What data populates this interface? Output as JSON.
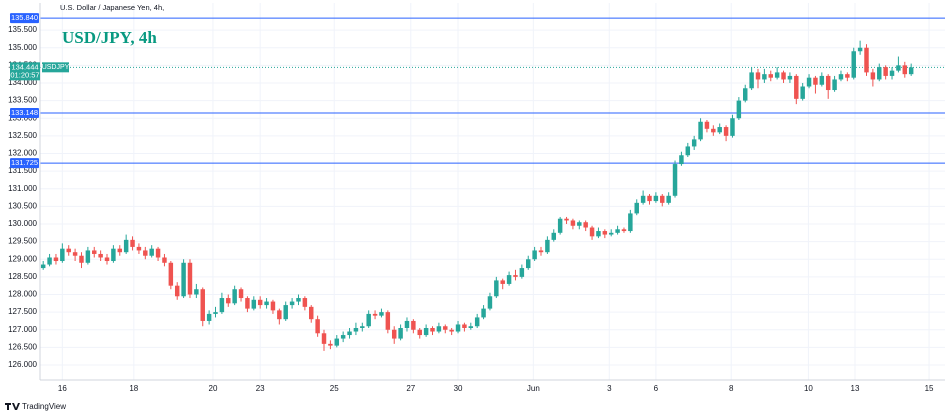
{
  "chart_data": {
    "type": "candlestick",
    "instrument": "U.S. Dollar / Japanese Yen, 4h,",
    "title": "USD/JPY, 4h",
    "source": "TradingView",
    "symbol": "USDJPY",
    "up_color": "#26a69a",
    "down_color": "#ef5350",
    "level_color": "#2962ff",
    "grid": true,
    "ylim": [
      125.575,
      136.07
    ],
    "yticks": [
      {
        "value": 126,
        "label": "126.000"
      },
      {
        "value": 126.5,
        "label": "126.500"
      },
      {
        "value": 127,
        "label": "127.000"
      },
      {
        "value": 127.5,
        "label": "127.500"
      },
      {
        "value": 128,
        "label": "128.000"
      },
      {
        "value": 128.5,
        "label": "128.500"
      },
      {
        "value": 129,
        "label": "129.000"
      },
      {
        "value": 129.5,
        "label": "129.500"
      },
      {
        "value": 130,
        "label": "130.000"
      },
      {
        "value": 130.5,
        "label": "130.500"
      },
      {
        "value": 131,
        "label": "131.000"
      },
      {
        "value": 131.5,
        "label": "131.500"
      },
      {
        "value": 132,
        "label": "132.000"
      },
      {
        "value": 132.5,
        "label": "132.500"
      },
      {
        "value": 133,
        "label": "133.000"
      },
      {
        "value": 133.5,
        "label": "133.500"
      },
      {
        "value": 134,
        "label": "134.000"
      },
      {
        "value": 134.5,
        "label": "134.500"
      },
      {
        "value": 135,
        "label": "135.000"
      },
      {
        "value": 135.5,
        "label": "135.500"
      }
    ],
    "xlim": [
      -0.5,
      141.3
    ],
    "xticks": [
      {
        "value": 3,
        "label": "16"
      },
      {
        "value": 14.2,
        "label": "18"
      },
      {
        "value": 26.6,
        "label": "20"
      },
      {
        "value": 34,
        "label": "23"
      },
      {
        "value": 45.6,
        "label": "25"
      },
      {
        "value": 57.6,
        "label": "27"
      },
      {
        "value": 65,
        "label": "30"
      },
      {
        "value": 76.8,
        "label": "Jun"
      },
      {
        "value": 88.7,
        "label": "3"
      },
      {
        "value": 96,
        "label": "6"
      },
      {
        "value": 107.8,
        "label": "8"
      },
      {
        "value": 119.9,
        "label": "10"
      },
      {
        "value": 127.2,
        "label": "13"
      },
      {
        "value": 138.8,
        "label": "15"
      }
    ],
    "levels": [
      {
        "value": 135.84,
        "label": "135.840"
      },
      {
        "value": 133.148,
        "label": "133.148"
      },
      {
        "value": 131.725,
        "label": "131.725"
      }
    ],
    "last_price": 134.444,
    "countdown": "01:20:57",
    "candles": [
      [
        128.75,
        128.95,
        128.7,
        128.85
      ],
      [
        128.85,
        129.15,
        128.8,
        129.05
      ],
      [
        129.05,
        129.15,
        128.85,
        128.95
      ],
      [
        128.95,
        129.45,
        128.9,
        129.3
      ],
      [
        129.3,
        129.4,
        129.1,
        129.2
      ],
      [
        129.2,
        129.3,
        128.95,
        129.1
      ],
      [
        129.1,
        129.2,
        128.75,
        128.9
      ],
      [
        128.9,
        129.35,
        128.85,
        129.25
      ],
      [
        129.25,
        129.35,
        129.05,
        129.15
      ],
      [
        129.15,
        129.25,
        128.95,
        129.05
      ],
      [
        129.05,
        129.15,
        128.85,
        128.95
      ],
      [
        128.95,
        129.4,
        128.9,
        129.3
      ],
      [
        129.3,
        129.4,
        129.1,
        129.2
      ],
      [
        129.2,
        129.7,
        129.15,
        129.55
      ],
      [
        129.55,
        129.65,
        129.25,
        129.35
      ],
      [
        129.35,
        129.45,
        129.15,
        129.25
      ],
      [
        129.25,
        129.35,
        129.0,
        129.1
      ],
      [
        129.1,
        129.4,
        129.05,
        129.3
      ],
      [
        129.3,
        129.35,
        128.95,
        129.05
      ],
      [
        129.05,
        129.15,
        128.8,
        128.9
      ],
      [
        128.9,
        128.95,
        128.15,
        128.25
      ],
      [
        128.25,
        128.35,
        127.85,
        127.95
      ],
      [
        127.95,
        129.0,
        127.9,
        128.9
      ],
      [
        128.9,
        129.0,
        127.9,
        128.0
      ],
      [
        128.0,
        128.3,
        127.9,
        128.15
      ],
      [
        128.15,
        128.2,
        127.1,
        127.25
      ],
      [
        127.25,
        127.55,
        127.15,
        127.45
      ],
      [
        127.45,
        127.65,
        127.35,
        127.5
      ],
      [
        127.5,
        128.05,
        127.45,
        127.9
      ],
      [
        127.9,
        128.0,
        127.65,
        127.75
      ],
      [
        127.75,
        128.25,
        127.7,
        128.15
      ],
      [
        128.15,
        128.2,
        127.8,
        127.9
      ],
      [
        127.9,
        127.95,
        127.5,
        127.6
      ],
      [
        127.6,
        127.95,
        127.55,
        127.85
      ],
      [
        127.85,
        127.95,
        127.6,
        127.7
      ],
      [
        127.7,
        127.9,
        127.6,
        127.8
      ],
      [
        127.8,
        127.85,
        127.45,
        127.55
      ],
      [
        127.55,
        127.6,
        127.15,
        127.3
      ],
      [
        127.3,
        127.8,
        127.25,
        127.7
      ],
      [
        127.7,
        127.9,
        127.6,
        127.8
      ],
      [
        127.8,
        128.0,
        127.7,
        127.9
      ],
      [
        127.9,
        127.95,
        127.55,
        127.65
      ],
      [
        127.65,
        127.7,
        127.2,
        127.3
      ],
      [
        127.3,
        127.4,
        126.8,
        126.9
      ],
      [
        126.9,
        127.0,
        126.4,
        126.6
      ],
      [
        126.6,
        126.7,
        126.45,
        126.55
      ],
      [
        126.55,
        126.85,
        126.5,
        126.75
      ],
      [
        126.75,
        126.95,
        126.65,
        126.85
      ],
      [
        126.85,
        127.05,
        126.75,
        126.95
      ],
      [
        126.95,
        127.2,
        126.85,
        127.05
      ],
      [
        127.05,
        127.2,
        126.95,
        127.1
      ],
      [
        127.1,
        127.55,
        127.05,
        127.45
      ],
      [
        127.45,
        127.55,
        127.3,
        127.4
      ],
      [
        127.4,
        127.6,
        127.35,
        127.5
      ],
      [
        127.5,
        127.55,
        126.9,
        127.0
      ],
      [
        127.0,
        127.1,
        126.6,
        126.75
      ],
      [
        126.75,
        127.15,
        126.7,
        127.05
      ],
      [
        127.05,
        127.35,
        126.95,
        127.25
      ],
      [
        127.25,
        127.3,
        126.9,
        127.0
      ],
      [
        127.0,
        127.05,
        126.75,
        126.85
      ],
      [
        126.85,
        127.15,
        126.8,
        127.05
      ],
      [
        127.05,
        127.1,
        126.85,
        126.95
      ],
      [
        126.95,
        127.2,
        126.9,
        127.1
      ],
      [
        127.1,
        127.15,
        126.9,
        127.0
      ],
      [
        127.0,
        127.05,
        126.85,
        126.95
      ],
      [
        126.95,
        127.25,
        126.9,
        127.15
      ],
      [
        127.15,
        127.2,
        126.95,
        127.05
      ],
      [
        127.05,
        127.2,
        127.0,
        127.1
      ],
      [
        127.1,
        127.45,
        127.05,
        127.35
      ],
      [
        127.35,
        127.7,
        127.3,
        127.6
      ],
      [
        127.6,
        128.05,
        127.55,
        127.95
      ],
      [
        127.95,
        128.5,
        127.9,
        128.4
      ],
      [
        128.4,
        128.45,
        128.15,
        128.3
      ],
      [
        128.3,
        128.65,
        128.25,
        128.55
      ],
      [
        128.55,
        128.7,
        128.4,
        128.5
      ],
      [
        128.5,
        128.85,
        128.45,
        128.75
      ],
      [
        128.75,
        129.1,
        128.7,
        129.0
      ],
      [
        129.0,
        129.35,
        128.95,
        129.25
      ],
      [
        129.25,
        129.35,
        129.1,
        129.2
      ],
      [
        129.2,
        129.65,
        129.15,
        129.55
      ],
      [
        129.55,
        129.85,
        129.5,
        129.75
      ],
      [
        129.75,
        130.2,
        129.7,
        130.15
      ],
      [
        130.15,
        130.2,
        130.0,
        130.1
      ],
      [
        130.1,
        130.15,
        129.85,
        129.95
      ],
      [
        129.95,
        130.1,
        129.85,
        130.05
      ],
      [
        130.05,
        130.1,
        129.8,
        129.9
      ],
      [
        129.9,
        129.95,
        129.55,
        129.65
      ],
      [
        129.65,
        129.9,
        129.6,
        129.8
      ],
      [
        129.8,
        129.85,
        129.6,
        129.7
      ],
      [
        129.7,
        129.85,
        129.65,
        129.75
      ],
      [
        129.75,
        129.95,
        129.7,
        129.85
      ],
      [
        129.85,
        129.9,
        129.75,
        129.8
      ],
      [
        129.8,
        130.4,
        129.75,
        130.3
      ],
      [
        130.3,
        130.7,
        130.25,
        130.6
      ],
      [
        130.6,
        130.95,
        130.55,
        130.8
      ],
      [
        130.8,
        130.85,
        130.55,
        130.65
      ],
      [
        130.65,
        130.9,
        130.6,
        130.8
      ],
      [
        130.8,
        130.85,
        130.5,
        130.6
      ],
      [
        130.6,
        130.9,
        130.55,
        130.8
      ],
      [
        130.8,
        131.8,
        130.75,
        131.7
      ],
      [
        131.7,
        132.05,
        131.65,
        131.95
      ],
      [
        131.95,
        132.3,
        131.9,
        132.2
      ],
      [
        132.2,
        132.5,
        132.1,
        132.4
      ],
      [
        132.4,
        133.0,
        132.35,
        132.9
      ],
      [
        132.9,
        132.95,
        132.6,
        132.7
      ],
      [
        132.7,
        132.8,
        132.5,
        132.6
      ],
      [
        132.6,
        132.85,
        132.55,
        132.75
      ],
      [
        132.75,
        132.8,
        132.35,
        132.5
      ],
      [
        132.5,
        133.1,
        132.45,
        133.0
      ],
      [
        133.0,
        133.6,
        132.95,
        133.5
      ],
      [
        133.5,
        133.95,
        133.45,
        133.85
      ],
      [
        133.85,
        134.45,
        133.8,
        134.3
      ],
      [
        134.3,
        134.4,
        133.85,
        134.1
      ],
      [
        134.1,
        134.4,
        134.0,
        134.25
      ],
      [
        134.25,
        134.35,
        134.05,
        134.15
      ],
      [
        134.15,
        134.45,
        134.1,
        134.3
      ],
      [
        134.3,
        134.35,
        134.0,
        134.1
      ],
      [
        134.1,
        134.3,
        134.0,
        134.2
      ],
      [
        134.2,
        134.25,
        133.4,
        133.55
      ],
      [
        133.55,
        134.0,
        133.5,
        133.9
      ],
      [
        133.9,
        134.25,
        133.85,
        134.15
      ],
      [
        134.15,
        134.2,
        133.7,
        133.95
      ],
      [
        133.95,
        134.3,
        133.9,
        134.2
      ],
      [
        134.2,
        134.25,
        133.55,
        133.8
      ],
      [
        133.8,
        134.2,
        133.75,
        134.1
      ],
      [
        134.1,
        134.35,
        134.05,
        134.25
      ],
      [
        134.25,
        134.3,
        134.05,
        134.15
      ],
      [
        134.15,
        135.0,
        134.1,
        134.9
      ],
      [
        134.9,
        135.2,
        134.8,
        135.0
      ],
      [
        135.0,
        135.1,
        134.2,
        134.3
      ],
      [
        134.3,
        134.4,
        133.9,
        134.1
      ],
      [
        134.1,
        134.55,
        134.05,
        134.45
      ],
      [
        134.45,
        134.5,
        134.1,
        134.2
      ],
      [
        134.2,
        134.45,
        134.1,
        134.35
      ],
      [
        134.35,
        134.75,
        134.3,
        134.5
      ],
      [
        134.5,
        134.6,
        134.15,
        134.25
      ],
      [
        134.25,
        134.55,
        134.2,
        134.444
      ]
    ]
  }
}
